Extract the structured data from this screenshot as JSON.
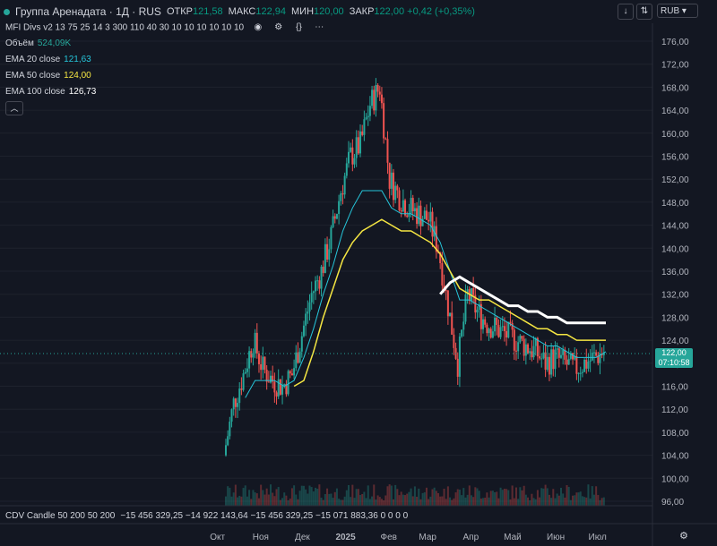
{
  "header": {
    "title": "Группа Аренадата · 1Д · RUS",
    "open_label": "ОТКР",
    "open": "121,58",
    "high_label": "МАКС",
    "high": "122,94",
    "low_label": "МИН",
    "low": "120,00",
    "close_label": "ЗАКР",
    "close": "122,00",
    "change": "+0,42 (+0,35%)",
    "currency": "RUB"
  },
  "indicators": {
    "mfi": "MFI Divs v2 13 75 25 14 3 300 110 40 30 10 10 10 10 10 10",
    "volume_label": "Объём",
    "volume_value": "524,09K",
    "ema20_label": "EMA 20 close",
    "ema20_value": "121,63",
    "ema50_label": "EMA 50 close",
    "ema50_value": "124,00",
    "ema100_label": "EMA 100 close",
    "ema100_value": "126,73"
  },
  "cdv": {
    "label": "CDV Candle 50 200 50 200",
    "values": "−15 456 329,25  −14 922 143,64  −15 456 329,25  −15 071 883,36  0  0  0  0"
  },
  "price_tag": {
    "price": "122,00",
    "time": "07:10:58"
  },
  "colors": {
    "bg": "#131722",
    "up": "#26a69a",
    "down": "#ef5350",
    "ema20": "#26c6da",
    "ema50": "#f5e642",
    "ema100": "#ffffff"
  },
  "chart_data": {
    "type": "line",
    "title": "Группа Аренадата · 1Д · RUS",
    "y_ticks": [
      "176,00",
      "172,00",
      "168,00",
      "164,00",
      "160,00",
      "156,00",
      "152,00",
      "148,00",
      "144,00",
      "140,00",
      "136,00",
      "132,00",
      "128,00",
      "124,00",
      "120,00",
      "116,00",
      "112,00",
      "108,00",
      "104,00",
      "100,00",
      "96,00"
    ],
    "x_ticks": [
      "Окт",
      "Ноя",
      "Дек",
      "2025",
      "Фев",
      "Мар",
      "Апр",
      "Май",
      "Июн",
      "Июл"
    ],
    "ylim": [
      94,
      179
    ],
    "x": [
      "2024-10-07",
      "2024-10-14",
      "2024-10-21",
      "2024-10-28",
      "2024-11-04",
      "2024-11-11",
      "2024-11-18",
      "2024-11-25",
      "2024-12-02",
      "2024-12-09",
      "2024-12-16",
      "2024-12-23",
      "2024-12-30",
      "2025-01-06",
      "2025-01-13",
      "2025-01-20",
      "2025-01-27",
      "2025-02-03",
      "2025-02-10",
      "2025-02-17",
      "2025-02-24",
      "2025-03-03",
      "2025-03-10",
      "2025-03-17",
      "2025-03-24",
      "2025-03-31",
      "2025-04-07",
      "2025-04-14",
      "2025-04-21",
      "2025-04-28",
      "2025-05-05",
      "2025-05-12",
      "2025-05-19",
      "2025-05-26",
      "2025-06-02",
      "2025-06-09",
      "2025-06-16",
      "2025-06-23",
      "2025-06-30",
      "2025-07-07"
    ],
    "series": [
      {
        "name": "Группа Аренадата",
        "values": [
          104,
          113,
          118,
          124,
          119,
          117,
          116,
          118,
          125,
          132,
          136,
          142,
          150,
          156,
          158,
          165,
          168,
          152,
          149,
          147,
          146,
          145,
          140,
          130,
          120,
          132,
          129,
          127,
          126,
          125,
          124,
          123,
          122,
          120,
          121,
          120,
          119,
          120,
          121,
          122
        ]
      },
      {
        "name": "EMA 20 close",
        "values": [
          null,
          null,
          114,
          117,
          117,
          117,
          116,
          117,
          121,
          126,
          132,
          137,
          143,
          147,
          150,
          150,
          150,
          147,
          146,
          146,
          145,
          144,
          141,
          136,
          131,
          131,
          130,
          129,
          128,
          127,
          126,
          125,
          124,
          123,
          123,
          122,
          121,
          121,
          121,
          122
        ]
      },
      {
        "name": "EMA 50 close",
        "values": [
          null,
          null,
          null,
          null,
          null,
          null,
          null,
          116,
          117,
          122,
          128,
          133,
          138,
          141,
          143,
          144,
          145,
          144,
          143,
          143,
          142,
          141,
          139,
          136,
          133,
          132,
          131,
          131,
          130,
          129,
          128,
          127,
          126,
          126,
          125,
          125,
          124,
          124,
          124,
          124
        ]
      },
      {
        "name": "EMA 100 close",
        "values": [
          null,
          null,
          null,
          null,
          null,
          null,
          null,
          null,
          null,
          null,
          null,
          null,
          null,
          null,
          null,
          null,
          null,
          null,
          null,
          null,
          null,
          null,
          132,
          134,
          135,
          134,
          133,
          132,
          131,
          130,
          130,
          129,
          129,
          128,
          128,
          127,
          127,
          127,
          127,
          127
        ]
      }
    ]
  }
}
